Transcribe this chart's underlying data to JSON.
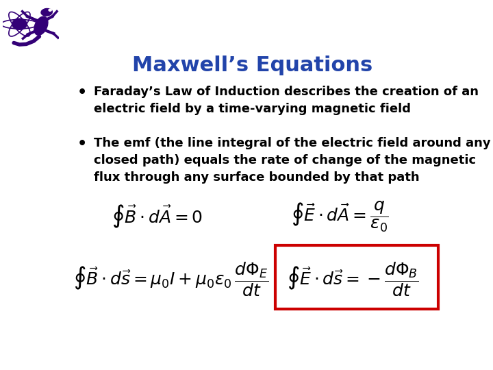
{
  "title": "Maxwell’s Equations",
  "title_color": "#2244AA",
  "title_fontsize": 22,
  "background_color": "#FFFFFF",
  "bullet1_line1": "Faraday’s Law of Induction describes the creation of an",
  "bullet1_line2": "electric field by a time-varying magnetic field",
  "bullet2_line1": "The emf (the line integral of the electric field around any",
  "bullet2_line2": "closed path) equals the rate of change of the magnetic",
  "bullet2_line3": "flux through any surface bounded by that path",
  "eq_fontsize": 18,
  "bullet_fontsize": 13,
  "box_color": "#CC0000",
  "text_color": "#000000",
  "logo_color": "#330077"
}
